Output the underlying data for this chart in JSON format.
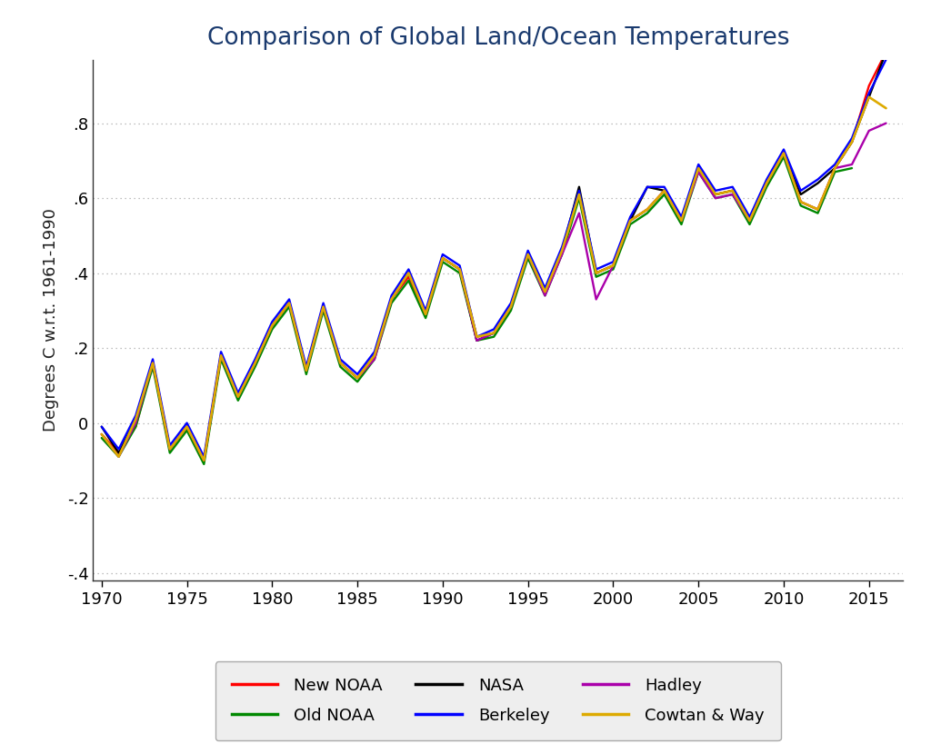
{
  "title": "Comparison of Global Land/Ocean Temperatures",
  "ylabel": "Degrees C w.r.t. 1961-1990",
  "title_color": "#1a3a6e",
  "title_fontsize": 19,
  "label_fontsize": 13,
  "tick_fontsize": 13,
  "legend_fontsize": 13,
  "background_color": "#ffffff",
  "xlim": [
    1969.5,
    2017.0
  ],
  "ylim": [
    -0.42,
    0.97
  ],
  "yticks": [
    -0.4,
    -0.2,
    0.0,
    0.2,
    0.4,
    0.6,
    0.8
  ],
  "ytick_labels": [
    "-.4",
    "-.2",
    "0",
    ".2",
    ".4",
    ".6",
    ".8"
  ],
  "xticks": [
    1970,
    1975,
    1980,
    1985,
    1990,
    1995,
    2000,
    2005,
    2010,
    2015
  ],
  "grid_color": "#aaaaaa",
  "series": {
    "New NOAA": {
      "color": "#ff0000",
      "lw": 1.7,
      "years": [
        1970,
        1971,
        1972,
        1973,
        1974,
        1975,
        1976,
        1977,
        1978,
        1979,
        1980,
        1981,
        1982,
        1983,
        1984,
        1985,
        1986,
        1987,
        1988,
        1989,
        1990,
        1991,
        1992,
        1993,
        1994,
        1995,
        1996,
        1997,
        1998,
        1999,
        2000,
        2001,
        2002,
        2003,
        2004,
        2005,
        2006,
        2007,
        2008,
        2009,
        2010,
        2011,
        2012,
        2013,
        2014,
        2015,
        2016
      ],
      "values": [
        -0.03,
        -0.08,
        -0.01,
        0.16,
        -0.07,
        -0.01,
        -0.1,
        0.18,
        0.07,
        0.16,
        0.26,
        0.32,
        0.14,
        0.31,
        0.16,
        0.12,
        0.18,
        0.33,
        0.39,
        0.29,
        0.44,
        0.41,
        0.23,
        0.24,
        0.31,
        0.45,
        0.35,
        0.46,
        0.61,
        0.4,
        0.42,
        0.54,
        0.57,
        0.62,
        0.54,
        0.68,
        0.61,
        0.62,
        0.54,
        0.64,
        0.72,
        0.59,
        0.57,
        0.68,
        0.75,
        0.9,
        0.99
      ]
    },
    "Old NOAA": {
      "color": "#008800",
      "lw": 1.7,
      "years": [
        1970,
        1971,
        1972,
        1973,
        1974,
        1975,
        1976,
        1977,
        1978,
        1979,
        1980,
        1981,
        1982,
        1983,
        1984,
        1985,
        1986,
        1987,
        1988,
        1989,
        1990,
        1991,
        1992,
        1993,
        1994,
        1995,
        1996,
        1997,
        1998,
        1999,
        2000,
        2001,
        2002,
        2003,
        2004,
        2005,
        2006,
        2007,
        2008,
        2009,
        2010,
        2011,
        2012,
        2013,
        2014
      ],
      "values": [
        -0.04,
        -0.09,
        -0.01,
        0.15,
        -0.08,
        -0.02,
        -0.11,
        0.17,
        0.06,
        0.15,
        0.25,
        0.31,
        0.13,
        0.3,
        0.15,
        0.11,
        0.17,
        0.32,
        0.38,
        0.28,
        0.43,
        0.4,
        0.22,
        0.23,
        0.3,
        0.44,
        0.34,
        0.45,
        0.6,
        0.39,
        0.41,
        0.53,
        0.56,
        0.61,
        0.53,
        0.67,
        0.6,
        0.61,
        0.53,
        0.63,
        0.71,
        0.58,
        0.56,
        0.67,
        0.68
      ]
    },
    "NASA": {
      "color": "#000000",
      "lw": 1.7,
      "years": [
        1970,
        1971,
        1972,
        1973,
        1974,
        1975,
        1976,
        1977,
        1978,
        1979,
        1980,
        1981,
        1982,
        1983,
        1984,
        1985,
        1986,
        1987,
        1988,
        1989,
        1990,
        1991,
        1992,
        1993,
        1994,
        1995,
        1996,
        1997,
        1998,
        1999,
        2000,
        2001,
        2002,
        2003,
        2004,
        2005,
        2006,
        2007,
        2008,
        2009,
        2010,
        2011,
        2012,
        2013,
        2014,
        2015,
        2016
      ],
      "values": [
        -0.01,
        -0.08,
        0.01,
        0.16,
        -0.07,
        -0.01,
        -0.1,
        0.18,
        0.07,
        0.16,
        0.26,
        0.32,
        0.14,
        0.31,
        0.16,
        0.12,
        0.18,
        0.33,
        0.4,
        0.29,
        0.44,
        0.41,
        0.22,
        0.24,
        0.31,
        0.45,
        0.35,
        0.46,
        0.63,
        0.4,
        0.42,
        0.54,
        0.63,
        0.62,
        0.54,
        0.68,
        0.61,
        0.62,
        0.54,
        0.64,
        0.72,
        0.61,
        0.64,
        0.68,
        0.75,
        0.87,
        0.99
      ]
    },
    "Berkeley": {
      "color": "#0000ff",
      "lw": 1.7,
      "years": [
        1970,
        1971,
        1972,
        1973,
        1974,
        1975,
        1976,
        1977,
        1978,
        1979,
        1980,
        1981,
        1982,
        1983,
        1984,
        1985,
        1986,
        1987,
        1988,
        1989,
        1990,
        1991,
        1992,
        1993,
        1994,
        1995,
        1996,
        1997,
        1998,
        1999,
        2000,
        2001,
        2002,
        2003,
        2004,
        2005,
        2006,
        2007,
        2008,
        2009,
        2010,
        2011,
        2012,
        2013,
        2014,
        2015,
        2016
      ],
      "values": [
        -0.01,
        -0.07,
        0.02,
        0.17,
        -0.06,
        0.0,
        -0.09,
        0.19,
        0.08,
        0.17,
        0.27,
        0.33,
        0.15,
        0.32,
        0.17,
        0.13,
        0.19,
        0.34,
        0.41,
        0.3,
        0.45,
        0.42,
        0.23,
        0.25,
        0.32,
        0.46,
        0.36,
        0.47,
        0.62,
        0.41,
        0.43,
        0.55,
        0.63,
        0.63,
        0.55,
        0.69,
        0.62,
        0.63,
        0.55,
        0.65,
        0.73,
        0.62,
        0.65,
        0.69,
        0.76,
        0.88,
        0.97
      ]
    },
    "Hadley": {
      "color": "#aa00aa",
      "lw": 1.7,
      "years": [
        1970,
        1971,
        1972,
        1973,
        1974,
        1975,
        1976,
        1977,
        1978,
        1979,
        1980,
        1981,
        1982,
        1983,
        1984,
        1985,
        1986,
        1987,
        1988,
        1989,
        1990,
        1991,
        1992,
        1993,
        1994,
        1995,
        1996,
        1997,
        1998,
        1999,
        2000,
        2001,
        2002,
        2003,
        2004,
        2005,
        2006,
        2007,
        2008,
        2009,
        2010,
        2011,
        2012,
        2013,
        2014,
        2015,
        2016
      ],
      "values": [
        -0.03,
        -0.09,
        0.0,
        0.16,
        -0.07,
        -0.01,
        -0.1,
        0.18,
        0.07,
        0.16,
        0.26,
        0.32,
        0.14,
        0.31,
        0.16,
        0.12,
        0.17,
        0.33,
        0.4,
        0.29,
        0.44,
        0.41,
        0.22,
        0.24,
        0.31,
        0.45,
        0.34,
        0.45,
        0.56,
        0.33,
        0.42,
        0.54,
        0.57,
        0.62,
        0.54,
        0.67,
        0.6,
        0.61,
        0.54,
        0.64,
        0.72,
        0.59,
        0.57,
        0.68,
        0.69,
        0.78,
        0.8
      ]
    },
    "Cowtan & Way": {
      "color": "#ddaa00",
      "lw": 1.9,
      "years": [
        1970,
        1971,
        1972,
        1973,
        1974,
        1975,
        1976,
        1977,
        1978,
        1979,
        1980,
        1981,
        1982,
        1983,
        1984,
        1985,
        1986,
        1987,
        1988,
        1989,
        1990,
        1991,
        1992,
        1993,
        1994,
        1995,
        1996,
        1997,
        1998,
        1999,
        2000,
        2001,
        2002,
        2003,
        2004,
        2005,
        2006,
        2007,
        2008,
        2009,
        2010,
        2011,
        2012,
        2013,
        2014,
        2015,
        2016
      ],
      "values": [
        -0.03,
        -0.09,
        0.01,
        0.16,
        -0.07,
        -0.01,
        -0.1,
        0.18,
        0.07,
        0.16,
        0.26,
        0.32,
        0.14,
        0.31,
        0.16,
        0.12,
        0.18,
        0.33,
        0.4,
        0.29,
        0.44,
        0.41,
        0.23,
        0.24,
        0.31,
        0.45,
        0.35,
        0.46,
        0.61,
        0.4,
        0.42,
        0.54,
        0.57,
        0.62,
        0.54,
        0.68,
        0.61,
        0.62,
        0.54,
        0.64,
        0.72,
        0.59,
        0.57,
        0.68,
        0.75,
        0.87,
        0.84
      ]
    }
  },
  "legend_order": [
    "New NOAA",
    "Old NOAA",
    "NASA",
    "Berkeley",
    "Hadley",
    "Cowtan & Way"
  ]
}
